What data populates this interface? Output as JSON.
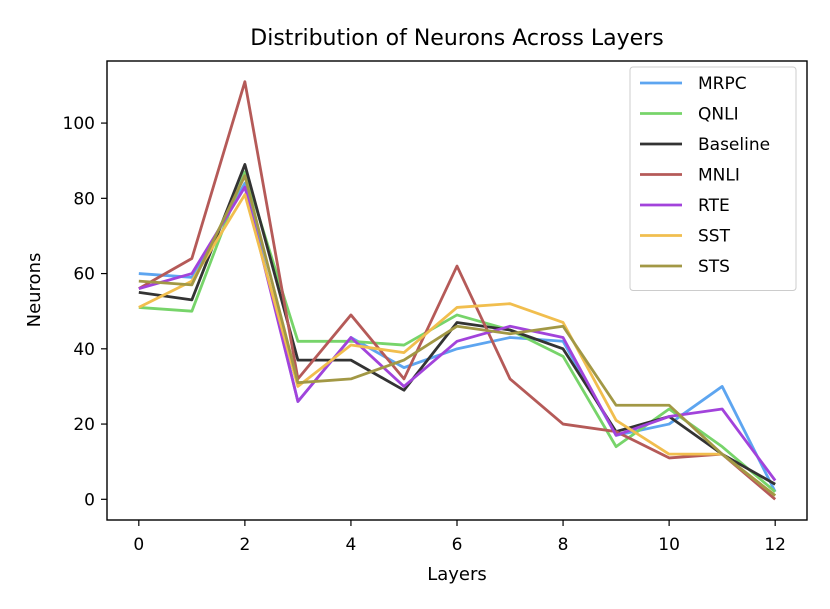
{
  "chart_data": {
    "type": "line",
    "title": "Distribution of Neurons Across Layers",
    "xlabel": "Layers",
    "ylabel": "Neurons",
    "x": [
      0,
      1,
      2,
      3,
      4,
      5,
      6,
      7,
      8,
      9,
      10,
      11,
      12
    ],
    "xlim": [
      -0.6,
      12.6
    ],
    "ylim": [
      -5.5,
      116.5
    ],
    "xticks": [
      0,
      2,
      4,
      6,
      8,
      10,
      12
    ],
    "yticks": [
      0,
      20,
      40,
      60,
      80,
      100
    ],
    "grid": false,
    "legend_position": "upper right",
    "series": [
      {
        "name": "MRPC",
        "color": "#5DA5F0",
        "values": [
          60,
          59,
          84,
          26,
          43,
          35,
          40,
          43,
          42,
          17,
          20,
          30,
          2
        ]
      },
      {
        "name": "QNLI",
        "color": "#77D46A",
        "values": [
          51,
          50,
          87,
          42,
          42,
          41,
          49,
          45,
          38,
          14,
          24,
          14,
          2
        ]
      },
      {
        "name": "Baseline",
        "color": "#333333",
        "values": [
          55,
          53,
          89,
          37,
          37,
          29,
          47,
          45,
          40,
          18,
          22,
          12,
          4
        ]
      },
      {
        "name": "MNLI",
        "color": "#B55A58",
        "values": [
          56,
          64,
          111,
          32,
          49,
          32,
          62,
          32,
          20,
          18,
          11,
          12,
          0
        ]
      },
      {
        "name": "RTE",
        "color": "#A243DB",
        "values": [
          56,
          60,
          83,
          26,
          43,
          30,
          42,
          46,
          43,
          17,
          22,
          24,
          5
        ]
      },
      {
        "name": "SST",
        "color": "#F1BE4E",
        "values": [
          51,
          58,
          81,
          30,
          41,
          39,
          51,
          52,
          47,
          21,
          12,
          12,
          1
        ]
      },
      {
        "name": "STS",
        "color": "#A29845",
        "values": [
          58,
          57,
          86,
          31,
          32,
          37,
          46,
          44,
          46,
          25,
          25,
          12,
          1
        ]
      }
    ]
  }
}
